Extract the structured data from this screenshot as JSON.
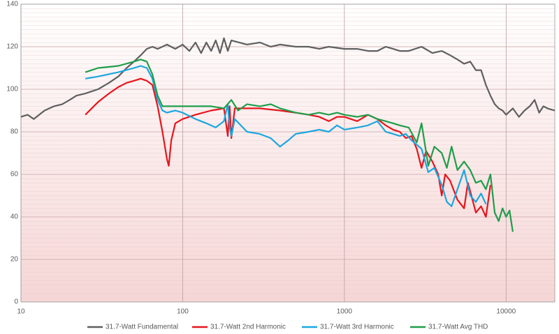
{
  "chart_data": {
    "type": "line",
    "xscale": "log",
    "xlim": [
      10,
      20000
    ],
    "xticks": [
      10,
      100,
      1000,
      10000
    ],
    "ylim": [
      0,
      140
    ],
    "yticks": [
      0,
      20,
      40,
      60,
      80,
      100,
      120,
      140
    ],
    "grid": true,
    "legend": "bottom",
    "series": [
      {
        "name": "31.7-Watt Fundamental",
        "color": "#5f5f5f",
        "x": [
          10,
          11,
          12,
          14,
          16,
          18,
          20,
          22,
          25,
          30,
          35,
          40,
          45,
          50,
          55,
          60,
          65,
          70,
          80,
          90,
          100,
          110,
          120,
          130,
          140,
          150,
          160,
          170,
          180,
          190,
          200,
          250,
          300,
          350,
          400,
          500,
          600,
          700,
          800,
          1000,
          1200,
          1400,
          1600,
          1800,
          2000,
          2200,
          2500,
          3000,
          3500,
          4000,
          4500,
          5000,
          5500,
          6000,
          6500,
          7000,
          7500,
          8000,
          8500,
          9000,
          9500,
          10000,
          11000,
          12000,
          13000,
          14000,
          15000,
          16000,
          17000,
          18000,
          20000
        ],
        "values": [
          87,
          88,
          86,
          90,
          92,
          93,
          95,
          97,
          98,
          100,
          103,
          106,
          110,
          113,
          116,
          119,
          120,
          119,
          121,
          119,
          121,
          118,
          122,
          117,
          122,
          118,
          123,
          117,
          124,
          118,
          123,
          121,
          122,
          120,
          121,
          120,
          120,
          119,
          120,
          119,
          119,
          118,
          118,
          120,
          119,
          118,
          118,
          120,
          117,
          118,
          116,
          114,
          112,
          113,
          109,
          109,
          102,
          97,
          93,
          91,
          90,
          88,
          91,
          87,
          90,
          92,
          95,
          89,
          92,
          91,
          90
        ]
      },
      {
        "name": "31.7-Watt 2nd Harmonic",
        "color": "#e8141b",
        "x": [
          25,
          30,
          35,
          40,
          45,
          50,
          55,
          60,
          65,
          70,
          75,
          80,
          82,
          85,
          90,
          100,
          120,
          150,
          180,
          190,
          195,
          200,
          210,
          250,
          300,
          400,
          500,
          600,
          700,
          800,
          900,
          1000,
          1200,
          1400,
          1600,
          1800,
          2000,
          2200,
          2400,
          2600,
          2800,
          3000,
          3200,
          3500,
          3800,
          4000,
          4200,
          4500,
          5000,
          5500,
          5800,
          6000,
          6500,
          7000,
          7500,
          8000
        ],
        "values": [
          88,
          94,
          98,
          101,
          103,
          104,
          105,
          104,
          102,
          92,
          80,
          67,
          64,
          76,
          84,
          86,
          88,
          90,
          91,
          78,
          92,
          77,
          91,
          91,
          91,
          90,
          89,
          88,
          87,
          85,
          87,
          87,
          85,
          88,
          86,
          83,
          81,
          80,
          77,
          78,
          72,
          63,
          71,
          66,
          60,
          50,
          60,
          57,
          48,
          44,
          56,
          52,
          42,
          45,
          40,
          55
        ]
      },
      {
        "name": "31.7-Watt 3rd Harmonic",
        "color": "#1aa7e0",
        "x": [
          25,
          30,
          40,
          50,
          55,
          60,
          65,
          70,
          75,
          80,
          90,
          100,
          120,
          140,
          160,
          180,
          190,
          195,
          200,
          210,
          250,
          300,
          350,
          400,
          450,
          500,
          600,
          700,
          800,
          900,
          1000,
          1200,
          1400,
          1600,
          1800,
          2000,
          2200,
          2400,
          2600,
          3000,
          3300,
          3600,
          4000,
          4300,
          4600,
          5000,
          5500,
          6000,
          6500,
          7000,
          7500
        ],
        "values": [
          105,
          106,
          108,
          110,
          111,
          110,
          105,
          95,
          90,
          89,
          90,
          89,
          86,
          84,
          82,
          85,
          93,
          82,
          78,
          86,
          80,
          79,
          77,
          73,
          76,
          79,
          80,
          81,
          80,
          83,
          81,
          82,
          83,
          85,
          80,
          79,
          78,
          79,
          76,
          72,
          61,
          63,
          55,
          47,
          45,
          53,
          62,
          50,
          47,
          51,
          46
        ]
      },
      {
        "name": "31.7-Watt Avg THD",
        "color": "#1e9e4a",
        "x": [
          25,
          30,
          40,
          50,
          55,
          60,
          65,
          70,
          75,
          80,
          100,
          150,
          180,
          200,
          220,
          250,
          300,
          350,
          400,
          500,
          600,
          700,
          800,
          900,
          1000,
          1200,
          1400,
          1600,
          1800,
          2000,
          2200,
          2500,
          2800,
          3000,
          3300,
          3600,
          4000,
          4300,
          4600,
          5000,
          5500,
          6000,
          6500,
          7000,
          7500,
          8000,
          8500,
          9000,
          9500,
          10000,
          10500,
          11000
        ],
        "values": [
          108,
          110,
          111,
          113,
          114,
          113,
          107,
          97,
          92,
          92,
          92,
          92,
          91,
          95,
          90,
          93,
          92,
          93,
          91,
          89,
          88,
          89,
          88,
          89,
          88,
          87,
          88,
          86,
          85,
          84,
          83,
          82,
          75,
          84,
          64,
          73,
          70,
          63,
          73,
          62,
          66,
          62,
          56,
          57,
          53,
          60,
          42,
          38,
          44,
          40,
          43,
          33
        ]
      }
    ]
  }
}
